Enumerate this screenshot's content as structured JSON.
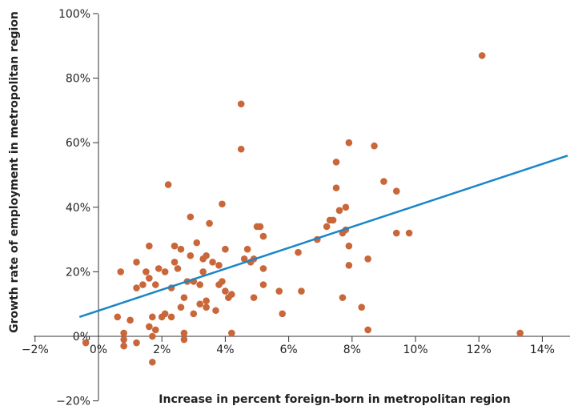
{
  "chart_data": {
    "type": "scatter",
    "xlabel": "Increase in percent foreign-born in metropolitan region",
    "ylabel": "Growth rate of employment in metropolitan region",
    "xlim": [
      -2,
      14
    ],
    "ylim": [
      -20,
      100
    ],
    "x_ticks": [
      -2,
      0,
      2,
      4,
      6,
      8,
      10,
      12,
      14
    ],
    "x_tick_labels": [
      "−2%",
      "0%",
      "2%",
      "4%",
      "6%",
      "8%",
      "10%",
      "12%",
      "14%"
    ],
    "y_ticks": [
      -20,
      0,
      20,
      40,
      60,
      80,
      100
    ],
    "y_tick_labels": [
      "−20%",
      "0%",
      "20%",
      "40%",
      "60%",
      "80%",
      "100%"
    ],
    "grid": false,
    "legend": "none",
    "point_color": "#c9673a",
    "line_color": "#1a86c7",
    "points": [
      [
        -0.4,
        -2
      ],
      [
        0.6,
        6
      ],
      [
        0.7,
        20
      ],
      [
        0.8,
        1
      ],
      [
        0.8,
        -1
      ],
      [
        0.8,
        -3
      ],
      [
        1.0,
        5
      ],
      [
        1.2,
        15
      ],
      [
        1.2,
        23
      ],
      [
        1.2,
        -2
      ],
      [
        1.4,
        16
      ],
      [
        1.5,
        20
      ],
      [
        1.6,
        3
      ],
      [
        1.6,
        18
      ],
      [
        1.6,
        28
      ],
      [
        1.7,
        6
      ],
      [
        1.7,
        0
      ],
      [
        1.7,
        -8
      ],
      [
        1.8,
        16
      ],
      [
        1.8,
        2
      ],
      [
        1.9,
        21
      ],
      [
        2.0,
        6
      ],
      [
        2.1,
        7
      ],
      [
        2.1,
        20
      ],
      [
        2.2,
        47
      ],
      [
        2.3,
        15
      ],
      [
        2.3,
        6
      ],
      [
        2.4,
        28
      ],
      [
        2.4,
        23
      ],
      [
        2.5,
        21
      ],
      [
        2.6,
        9
      ],
      [
        2.6,
        27
      ],
      [
        2.7,
        12
      ],
      [
        2.7,
        1
      ],
      [
        2.7,
        -1
      ],
      [
        2.8,
        17
      ],
      [
        2.9,
        25
      ],
      [
        2.9,
        37
      ],
      [
        3.0,
        7
      ],
      [
        3.0,
        17
      ],
      [
        3.1,
        29
      ],
      [
        3.2,
        16
      ],
      [
        3.2,
        10
      ],
      [
        3.3,
        20
      ],
      [
        3.3,
        24
      ],
      [
        3.4,
        25
      ],
      [
        3.4,
        9
      ],
      [
        3.4,
        11
      ],
      [
        3.5,
        35
      ],
      [
        3.6,
        23
      ],
      [
        3.7,
        8
      ],
      [
        3.8,
        22
      ],
      [
        3.8,
        16
      ],
      [
        3.9,
        17
      ],
      [
        3.9,
        41
      ],
      [
        4.0,
        14
      ],
      [
        4.0,
        27
      ],
      [
        4.1,
        12
      ],
      [
        4.2,
        13
      ],
      [
        4.2,
        1
      ],
      [
        4.5,
        72
      ],
      [
        4.5,
        58
      ],
      [
        4.6,
        24
      ],
      [
        4.7,
        27
      ],
      [
        4.8,
        23
      ],
      [
        4.9,
        24
      ],
      [
        4.9,
        12
      ],
      [
        5.0,
        34
      ],
      [
        5.1,
        34
      ],
      [
        5.2,
        31
      ],
      [
        5.2,
        16
      ],
      [
        5.2,
        21
      ],
      [
        5.7,
        14
      ],
      [
        5.8,
        7
      ],
      [
        6.3,
        26
      ],
      [
        6.4,
        14
      ],
      [
        6.9,
        30
      ],
      [
        7.2,
        34
      ],
      [
        7.3,
        36
      ],
      [
        7.4,
        36
      ],
      [
        7.5,
        46
      ],
      [
        7.5,
        54
      ],
      [
        7.6,
        39
      ],
      [
        7.7,
        12
      ],
      [
        7.7,
        32
      ],
      [
        7.8,
        33
      ],
      [
        7.8,
        40
      ],
      [
        7.9,
        28
      ],
      [
        7.9,
        60
      ],
      [
        7.9,
        22
      ],
      [
        8.3,
        9
      ],
      [
        8.5,
        24
      ],
      [
        8.5,
        2
      ],
      [
        8.7,
        59
      ],
      [
        9.0,
        48
      ],
      [
        9.4,
        32
      ],
      [
        9.4,
        45
      ],
      [
        9.8,
        32
      ],
      [
        12.1,
        87
      ],
      [
        13.3,
        1
      ]
    ],
    "trend_line": {
      "x": [
        -0.6,
        14.8
      ],
      "y": [
        6,
        56
      ]
    }
  }
}
